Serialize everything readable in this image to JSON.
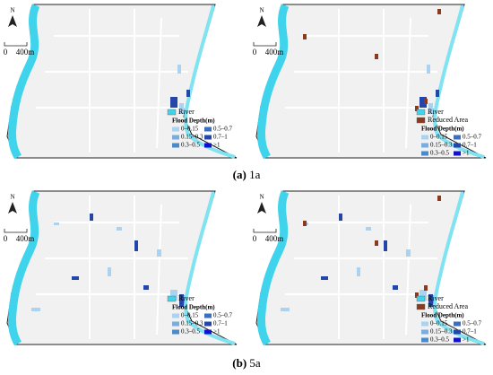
{
  "panels": [
    {
      "north": "N",
      "scale": [
        "0",
        "400m"
      ],
      "legend": {
        "items": [
          "River"
        ],
        "title": "Flood Depth(m)",
        "depths": [
          "0–0.15",
          "0.5–0.7",
          "0.15–0.3",
          "0.7–1",
          "0.3–0.5",
          ">1"
        ]
      }
    },
    {
      "north": "N",
      "scale": [
        "0",
        "400m"
      ],
      "legend": {
        "items": [
          "River",
          "Reduced Area"
        ],
        "title": "Flood Depth(m)",
        "depths": [
          "0–0.15",
          "0.5–0.7",
          "0.15–0.3",
          "0.7–1",
          "0.3–0.5",
          ">1"
        ]
      }
    },
    {
      "north": "N",
      "scale": [
        "0",
        "400m"
      ],
      "legend": {
        "items": [
          "River"
        ],
        "title": "Flood Depth(m)",
        "depths": [
          "0–0.15",
          "0.5–0.7",
          "0.15–0.3",
          "0.7–1",
          "0.3–0.5",
          ">1"
        ]
      }
    },
    {
      "north": "N",
      "scale": [
        "0",
        "400m"
      ],
      "legend": {
        "items": [
          "River",
          "Reduced Area"
        ],
        "title": "Flood Depth(m)",
        "depths": [
          "0–0.15",
          "0.5–0.7",
          "0.15–0.3",
          "0.7–1",
          "0.3–0.5",
          ">1"
        ]
      }
    }
  ],
  "captions": [
    {
      "label": "(a)",
      "text": "1a"
    },
    {
      "label": "(b)",
      "text": "5a"
    }
  ]
}
